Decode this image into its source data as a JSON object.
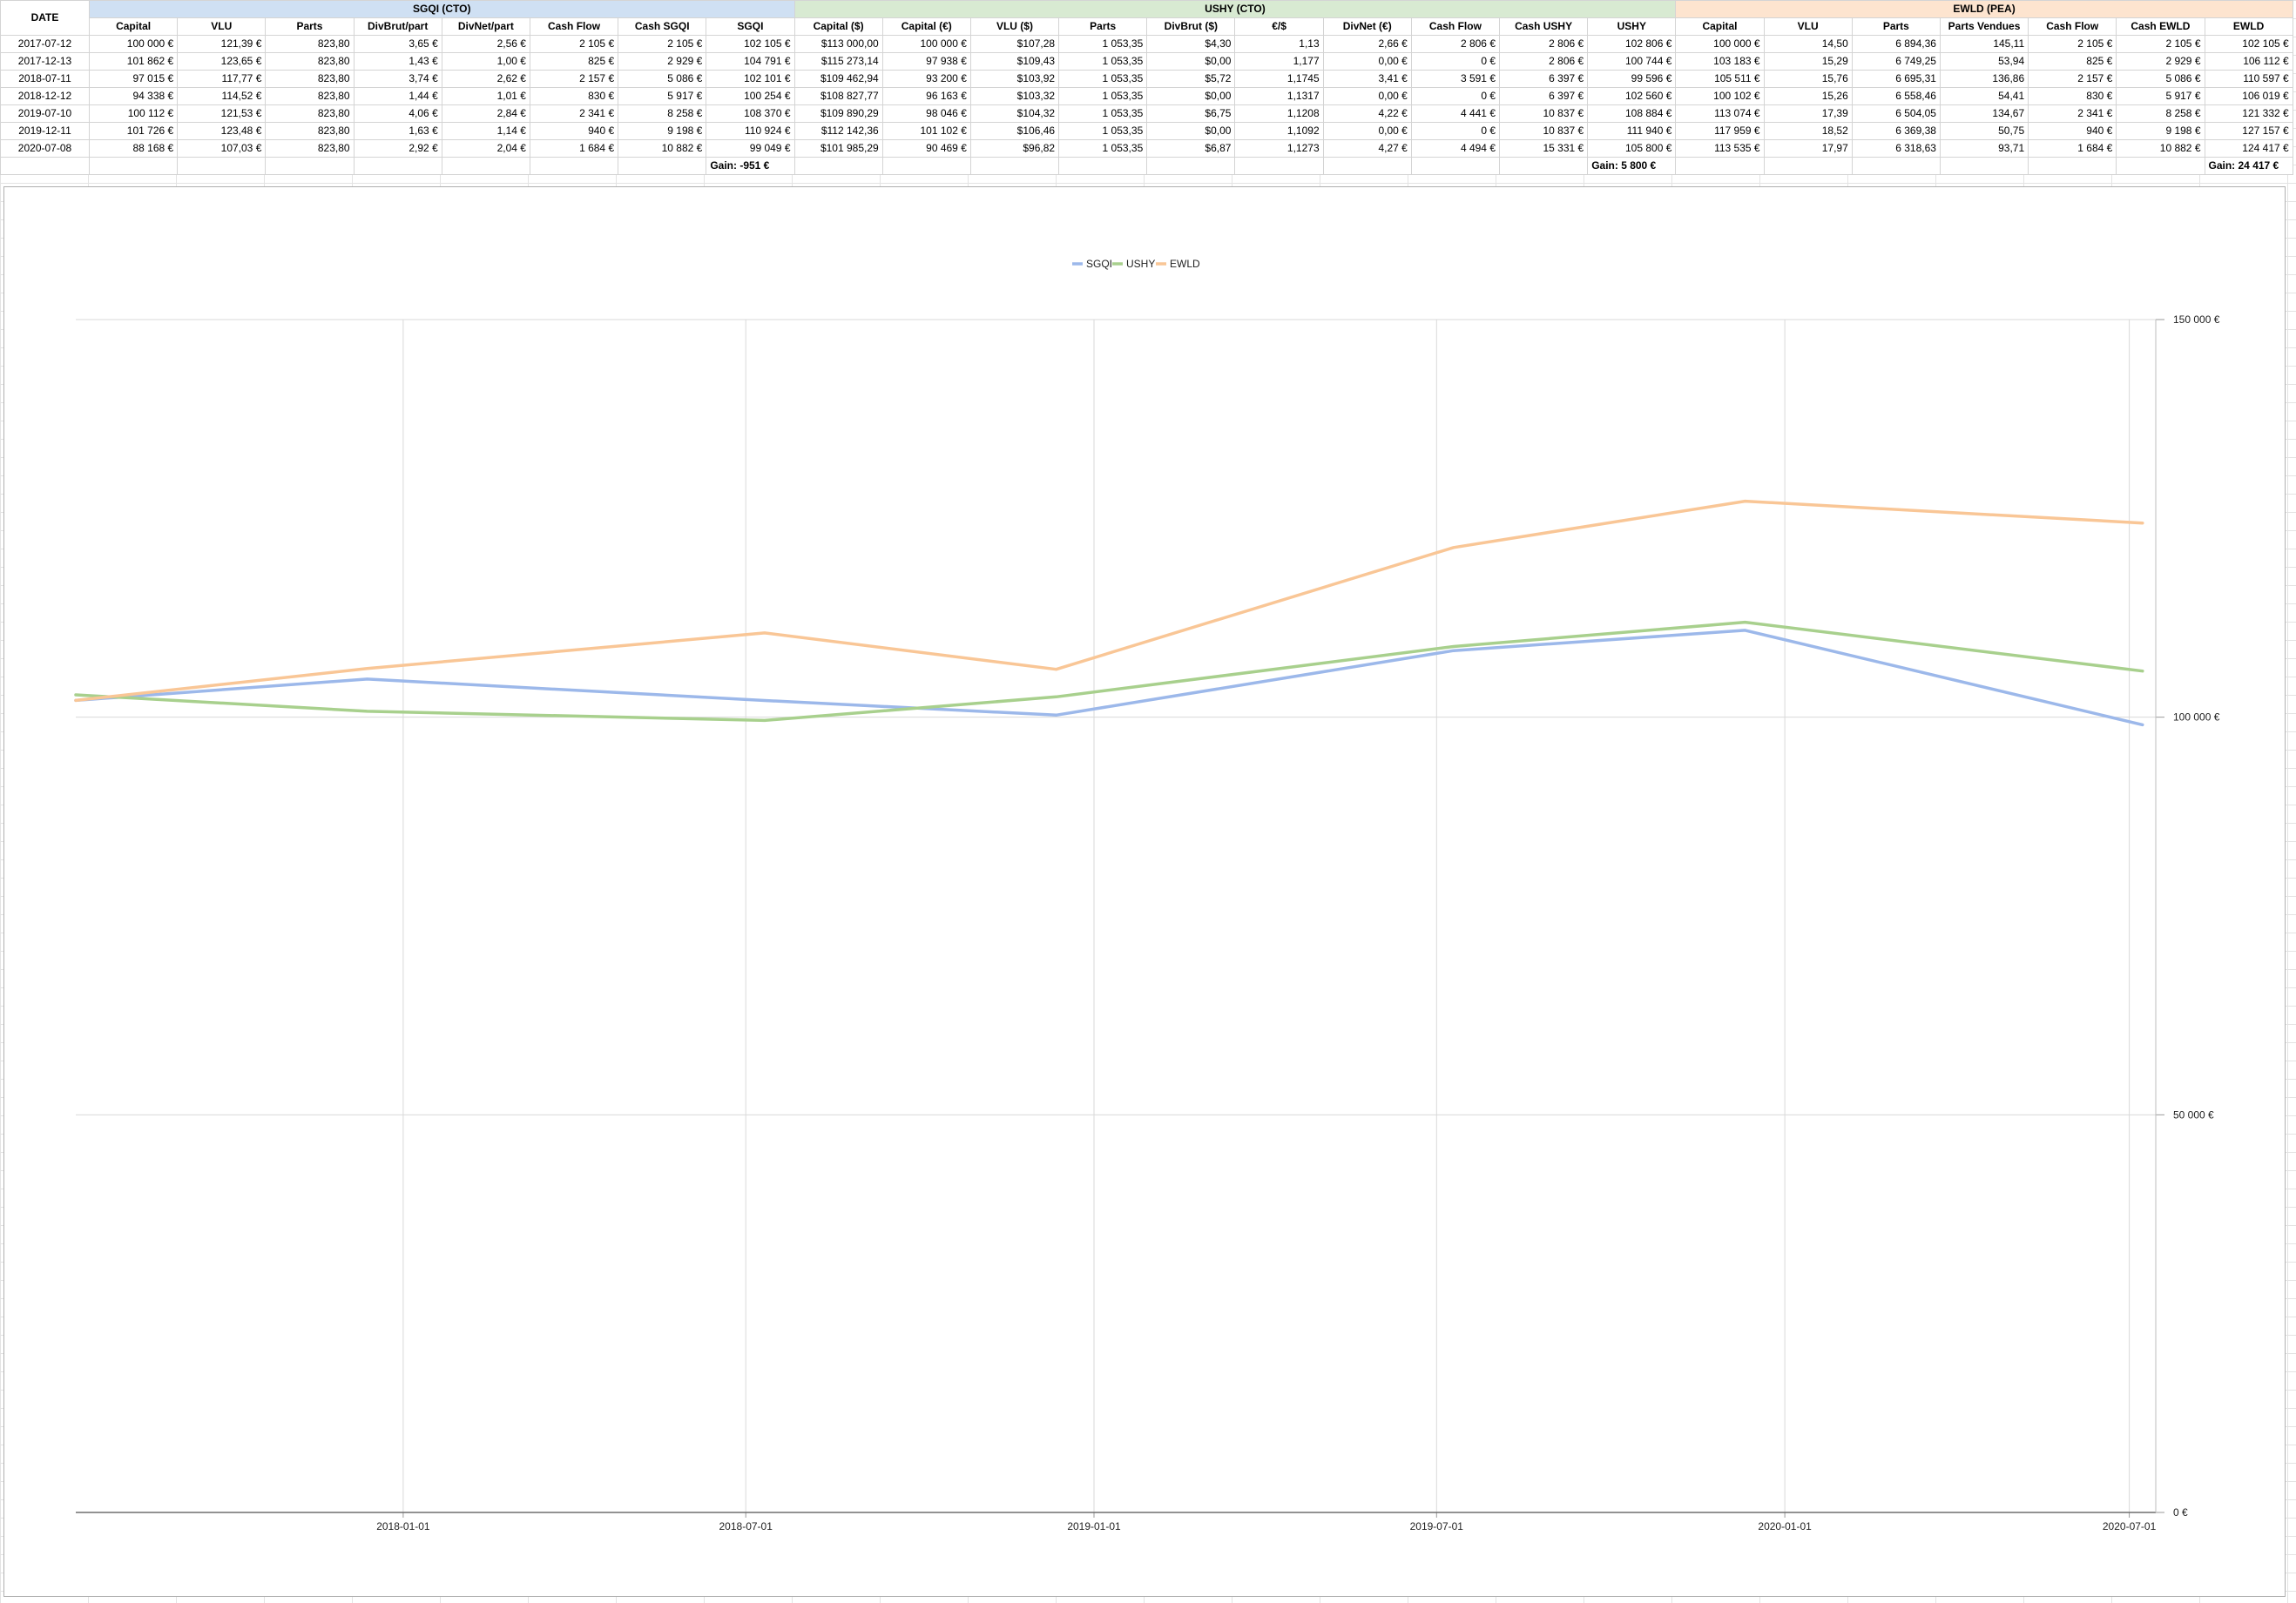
{
  "sheet": {
    "date_header": "DATE",
    "groups": [
      {
        "label": "SGQI (CTO)",
        "span": 8,
        "cls": "group-sgqi"
      },
      {
        "label": "USHY (CTO)",
        "span": 10,
        "cls": "group-ushy"
      },
      {
        "label": "EWLD (PEA)",
        "span": 7,
        "cls": "group-ewld"
      }
    ],
    "columns": [
      "Capital",
      "VLU",
      "Parts",
      "DivBrut/part",
      "DivNet/part",
      "Cash Flow",
      "Cash SGQI",
      "SGQI",
      "Capital ($)",
      "Capital (€)",
      "VLU ($)",
      "Parts",
      "DivBrut ($)",
      "€/$",
      "DivNet (€)",
      "Cash Flow",
      "Cash USHY",
      "USHY",
      "Capital",
      "VLU",
      "Parts",
      "Parts Vendues",
      "Cash Flow",
      "Cash EWLD",
      "EWLD"
    ],
    "rows": [
      {
        "date": "2017-07-12",
        "cells": [
          "100 000 €",
          "121,39 €",
          "823,80",
          "3,65 €",
          "2,56 €",
          "2 105 €",
          "2 105 €",
          "102 105 €",
          "$113 000,00",
          "100 000 €",
          "$107,28",
          "1 053,35",
          "$4,30",
          "1,13",
          "2,66 €",
          "2 806 €",
          "2 806 €",
          "102 806 €",
          "100 000 €",
          "14,50",
          "6 894,36",
          "145,11",
          "2 105 €",
          "2 105 €",
          "102 105 €"
        ]
      },
      {
        "date": "2017-12-13",
        "cells": [
          "101 862 €",
          "123,65 €",
          "823,80",
          "1,43 €",
          "1,00 €",
          "825 €",
          "2 929 €",
          "104 791 €",
          "$115 273,14",
          "97 938 €",
          "$109,43",
          "1 053,35",
          "$0,00",
          "1,177",
          "0,00 €",
          "0 €",
          "2 806 €",
          "100 744 €",
          "103 183 €",
          "15,29",
          "6 749,25",
          "53,94",
          "825 €",
          "2 929 €",
          "106 112 €"
        ]
      },
      {
        "date": "2018-07-11",
        "cells": [
          "97 015 €",
          "117,77 €",
          "823,80",
          "3,74 €",
          "2,62 €",
          "2 157 €",
          "5 086 €",
          "102 101 €",
          "$109 462,94",
          "93 200 €",
          "$103,92",
          "1 053,35",
          "$5,72",
          "1,1745",
          "3,41 €",
          "3 591 €",
          "6 397 €",
          "99 596 €",
          "105 511 €",
          "15,76",
          "6 695,31",
          "136,86",
          "2 157 €",
          "5 086 €",
          "110 597 €"
        ]
      },
      {
        "date": "2018-12-12",
        "cells": [
          "94 338 €",
          "114,52 €",
          "823,80",
          "1,44 €",
          "1,01 €",
          "830 €",
          "5 917 €",
          "100 254 €",
          "$108 827,77",
          "96 163 €",
          "$103,32",
          "1 053,35",
          "$0,00",
          "1,1317",
          "0,00 €",
          "0 €",
          "6 397 €",
          "102 560 €",
          "100 102 €",
          "15,26",
          "6 558,46",
          "54,41",
          "830 €",
          "5 917 €",
          "106 019 €"
        ]
      },
      {
        "date": "2019-07-10",
        "cells": [
          "100 112 €",
          "121,53 €",
          "823,80",
          "4,06 €",
          "2,84 €",
          "2 341 €",
          "8 258 €",
          "108 370 €",
          "$109 890,29",
          "98 046 €",
          "$104,32",
          "1 053,35",
          "$6,75",
          "1,1208",
          "4,22 €",
          "4 441 €",
          "10 837 €",
          "108 884 €",
          "113 074 €",
          "17,39",
          "6 504,05",
          "134,67",
          "2 341 €",
          "8 258 €",
          "121 332 €"
        ]
      },
      {
        "date": "2019-12-11",
        "cells": [
          "101 726 €",
          "123,48 €",
          "823,80",
          "1,63 €",
          "1,14 €",
          "940 €",
          "9 198 €",
          "110 924 €",
          "$112 142,36",
          "101 102 €",
          "$106,46",
          "1 053,35",
          "$0,00",
          "1,1092",
          "0,00 €",
          "0 €",
          "10 837 €",
          "111 940 €",
          "117 959 €",
          "18,52",
          "6 369,38",
          "50,75",
          "940 €",
          "9 198 €",
          "127 157 €"
        ]
      },
      {
        "date": "2020-07-08",
        "cells": [
          "88 168 €",
          "107,03 €",
          "823,80",
          "2,92 €",
          "2,04 €",
          "1 684 €",
          "10 882 €",
          "99 049 €",
          "$101 985,29",
          "90 469 €",
          "$96,82",
          "1 053,35",
          "$6,87",
          "1,1273",
          "4,27 €",
          "4 494 €",
          "15 331 €",
          "105 800 €",
          "113 535 €",
          "17,97",
          "6 318,63",
          "93,71",
          "1 684 €",
          "10 882 €",
          "124 417 €"
        ]
      }
    ],
    "gains": [
      {
        "label": "Gain:",
        "value": "-951 €",
        "col": 7
      },
      {
        "label": "Gain:",
        "value": "5 800 €",
        "col": 17
      },
      {
        "label": "Gain:",
        "value": "24 417 €",
        "col": 24
      }
    ]
  },
  "chart_data": {
    "type": "line",
    "x": [
      "2017-07-12",
      "2017-12-13",
      "2018-07-11",
      "2018-12-12",
      "2019-07-10",
      "2019-12-11",
      "2020-07-08"
    ],
    "series": [
      {
        "name": "SGQI",
        "color": "#9cb8ea",
        "values": [
          102105,
          104791,
          102101,
          100254,
          108370,
          110924,
          99049
        ]
      },
      {
        "name": "USHY",
        "color": "#a8d08d",
        "values": [
          102806,
          100744,
          99596,
          102560,
          108884,
          111940,
          105800
        ]
      },
      {
        "name": "EWLD",
        "color": "#f9c696",
        "values": [
          102105,
          106112,
          110597,
          106019,
          121332,
          127157,
          124417
        ]
      }
    ],
    "x_ticks": [
      "2018-01-01",
      "2018-07-01",
      "2019-01-01",
      "2019-07-01",
      "2020-01-01",
      "2020-07-01"
    ],
    "y_ticks": [
      0,
      50000,
      100000,
      150000
    ],
    "y_tick_labels": [
      "0 €",
      "50 000 €",
      "100 000 €",
      "150 000 €"
    ],
    "ylim": [
      0,
      150000
    ],
    "xlim": [
      "2017-07-12",
      "2020-07-15"
    ],
    "y_axis_side": "right",
    "legend_position": "top-center",
    "grid": true
  }
}
